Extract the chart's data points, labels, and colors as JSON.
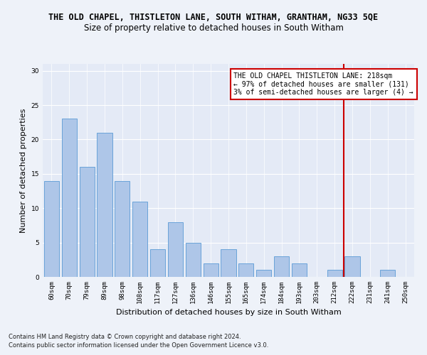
{
  "title": "THE OLD CHAPEL, THISTLETON LANE, SOUTH WITHAM, GRANTHAM, NG33 5QE",
  "subtitle": "Size of property relative to detached houses in South Witham",
  "xlabel": "Distribution of detached houses by size in South Witham",
  "ylabel": "Number of detached properties",
  "footnote1": "Contains HM Land Registry data © Crown copyright and database right 2024.",
  "footnote2": "Contains public sector information licensed under the Open Government Licence v3.0.",
  "categories": [
    "60sqm",
    "70sqm",
    "79sqm",
    "89sqm",
    "98sqm",
    "108sqm",
    "117sqm",
    "127sqm",
    "136sqm",
    "146sqm",
    "155sqm",
    "165sqm",
    "174sqm",
    "184sqm",
    "193sqm",
    "203sqm",
    "212sqm",
    "222sqm",
    "231sqm",
    "241sqm",
    "250sqm"
  ],
  "values": [
    14,
    23,
    16,
    21,
    14,
    11,
    4,
    8,
    5,
    2,
    4,
    2,
    1,
    3,
    2,
    0,
    1,
    3,
    0,
    1,
    0
  ],
  "bar_color": "#aec6e8",
  "bar_edge_color": "#5b9bd5",
  "vline_color": "#cc0000",
  "annotation_text": "THE OLD CHAPEL THISTLETON LANE: 218sqm\n← 97% of detached houses are smaller (131)\n3% of semi-detached houses are larger (4) →",
  "annotation_box_color": "#cc0000",
  "ylim": [
    0,
    31
  ],
  "yticks": [
    0,
    5,
    10,
    15,
    20,
    25,
    30
  ],
  "background_color": "#eef2f9",
  "plot_bg_color": "#e4eaf6",
  "grid_color": "#ffffff",
  "title_fontsize": 8.5,
  "subtitle_fontsize": 8.5,
  "axis_label_fontsize": 8,
  "tick_fontsize": 6.5,
  "annotation_fontsize": 7,
  "footnote_fontsize": 6
}
